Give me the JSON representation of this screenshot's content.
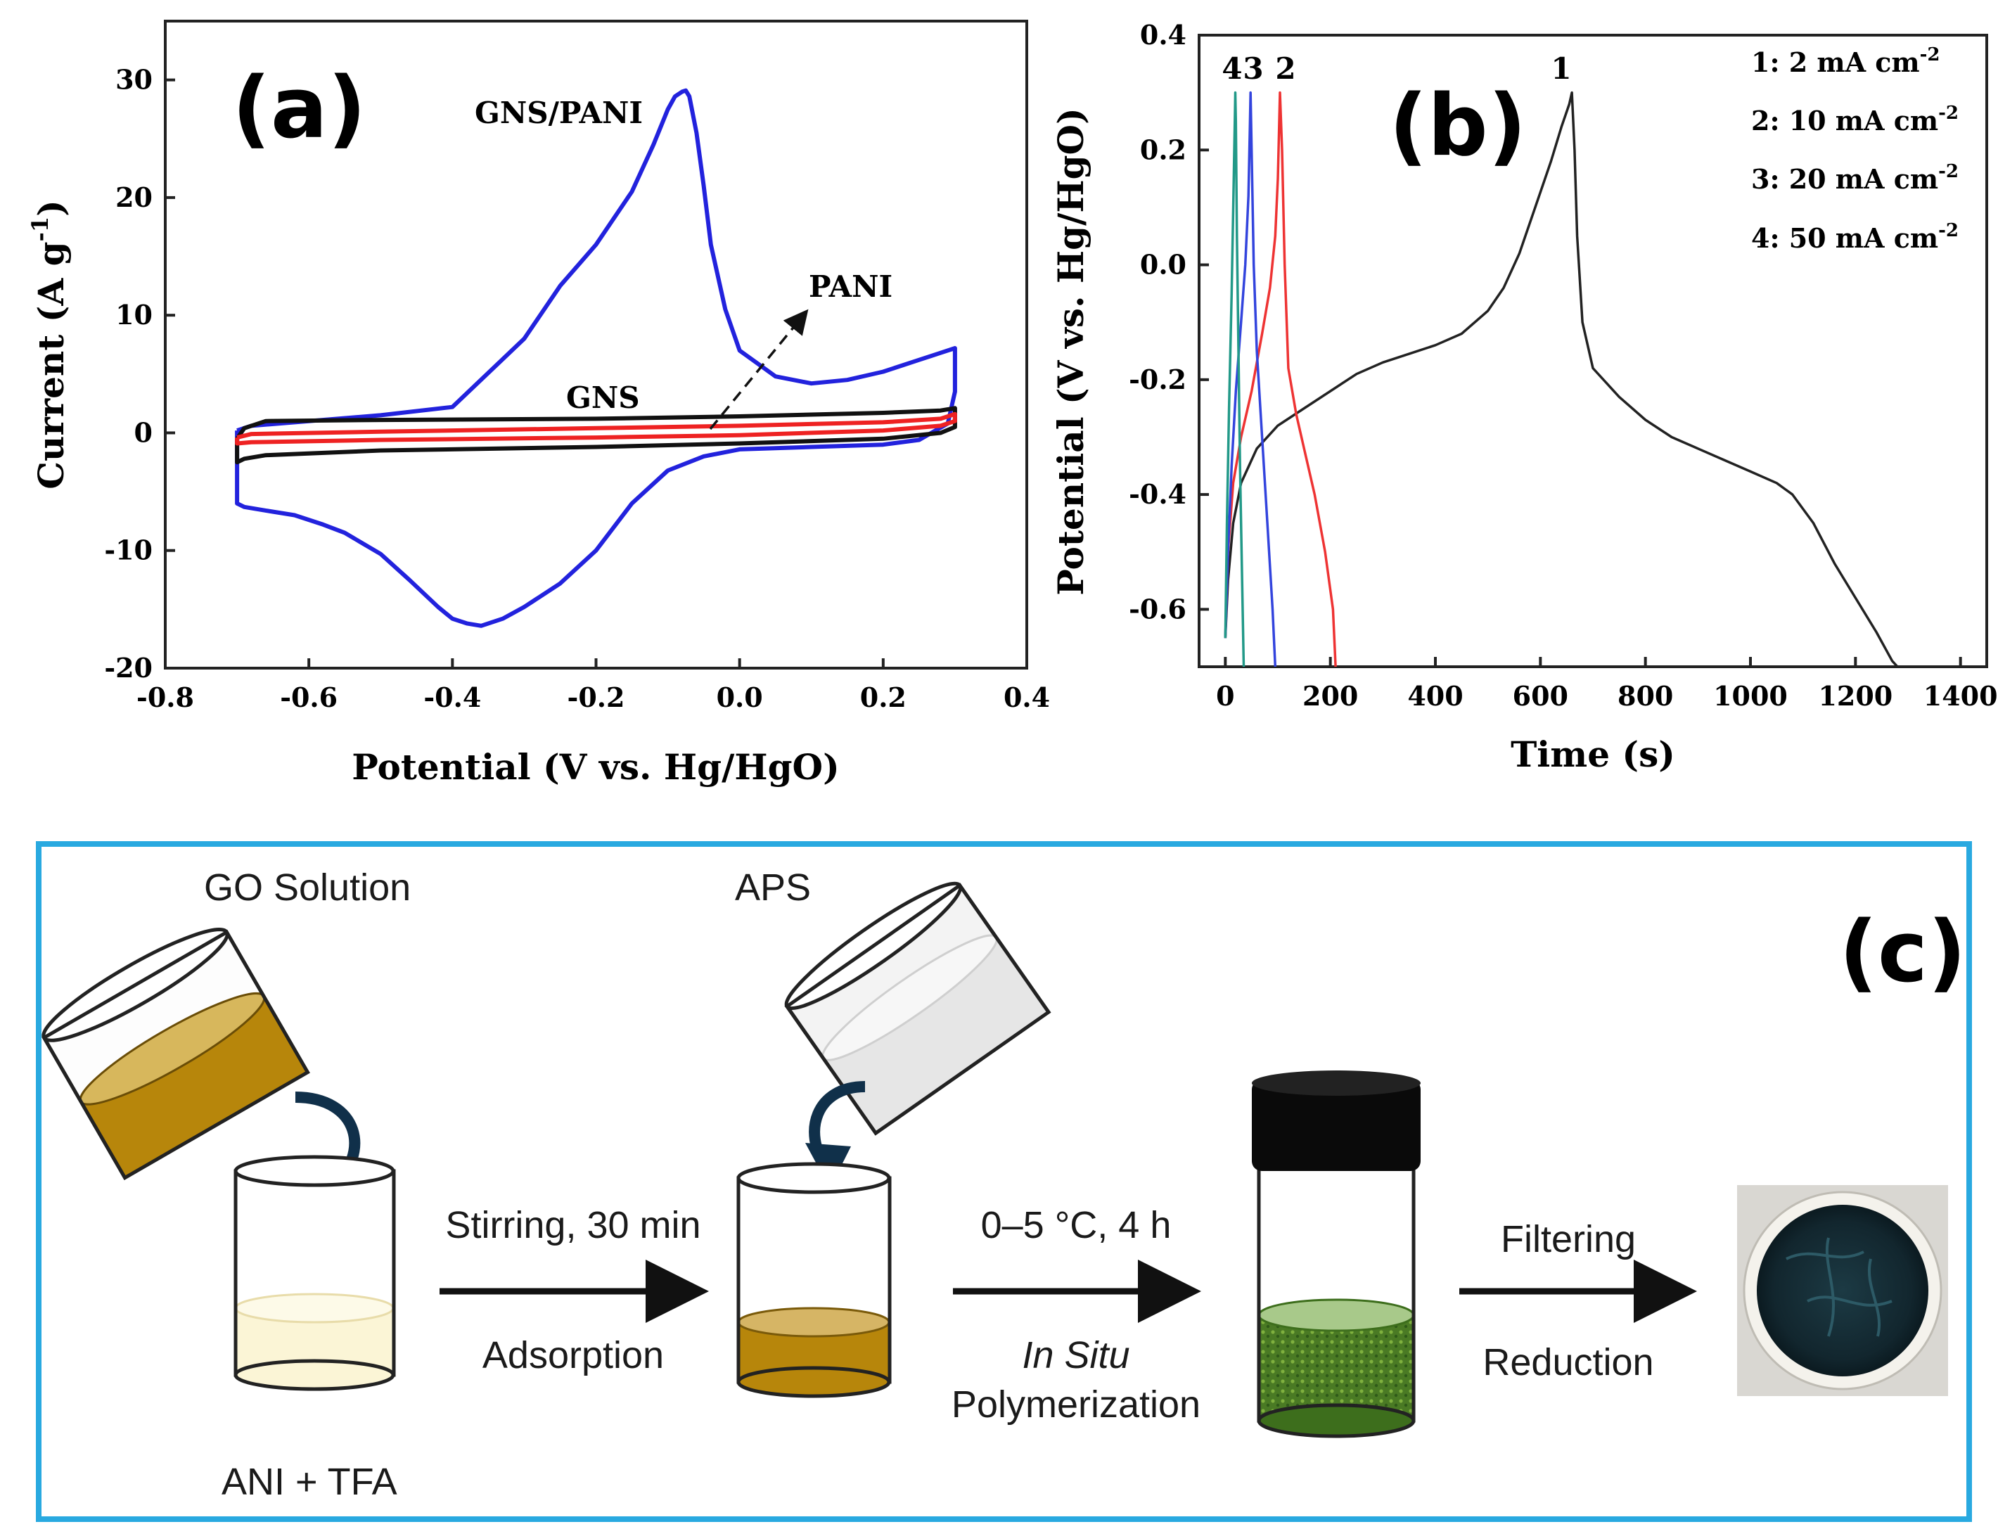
{
  "panel_a": {
    "letter": "(a)",
    "curve_labels": {
      "gns_pani": "GNS/PANI",
      "pani": "PANI",
      "gns": "GNS"
    }
  },
  "panel_b": {
    "letter": "(b)",
    "curve_numbers": [
      "1",
      "2",
      "3",
      "4"
    ],
    "legend": [
      "1: 2 mA cm",
      "2: 10 mA cm",
      "3: 20 mA cm",
      "4: 50 mA cm"
    ],
    "legend_exp": "-2"
  },
  "panel_c": {
    "letter": "(c)",
    "border_color": "#29a9e0",
    "labels": {
      "go_solution": "GO Solution",
      "aps": "APS",
      "ani_tfa": "ANI + TFA",
      "step1_top": "Stirring, 30 min",
      "step1_bottom": "Adsorption",
      "step2_top": "0–5 °C, 4 h",
      "step2_mid": "In Situ",
      "step2_bottom": "Polymerization",
      "step3_top": "Filtering",
      "step3_bottom": "Reduction"
    }
  },
  "chart_data": [
    {
      "type": "line",
      "panel": "a",
      "xlabel": "Potential (V vs. Hg/HgO)",
      "ylabel": "Current (A g",
      "ylabel_exp": "-1",
      "ylabel_end": ")",
      "xlim": [
        -0.8,
        0.4
      ],
      "ylim": [
        -20,
        35
      ],
      "xticks": [
        -0.8,
        -0.6,
        -0.4,
        -0.2,
        0.0,
        0.2,
        0.4
      ],
      "xtick_labels": [
        "-0.8",
        "-0.6",
        "-0.4",
        "-0.2",
        "0.0",
        "0.2",
        "0.4"
      ],
      "yticks": [
        -20,
        -10,
        0,
        10,
        20,
        30
      ],
      "ytick_labels": [
        "-20",
        "-10",
        "0",
        "10",
        "20",
        "30"
      ],
      "series": [
        {
          "name": "GNS/PANI",
          "color": "#2222dd",
          "x": [
            -0.7,
            -0.68,
            -0.6,
            -0.5,
            -0.4,
            -0.3,
            -0.25,
            -0.2,
            -0.15,
            -0.12,
            -0.1,
            -0.09,
            -0.08,
            -0.075,
            -0.07,
            -0.06,
            -0.05,
            -0.04,
            -0.02,
            0.0,
            0.05,
            0.1,
            0.15,
            0.2,
            0.25,
            0.28,
            0.3,
            0.3,
            0.29,
            0.25,
            0.2,
            0.1,
            0.0,
            -0.05,
            -0.1,
            -0.15,
            -0.2,
            -0.25,
            -0.3,
            -0.33,
            -0.36,
            -0.38,
            -0.4,
            -0.42,
            -0.46,
            -0.5,
            -0.55,
            -0.58,
            -0.62,
            -0.66,
            -0.69,
            -0.7,
            -0.7
          ],
          "y": [
            0.2,
            0.6,
            1.0,
            1.5,
            2.2,
            8.0,
            12.5,
            16.0,
            20.5,
            24.5,
            27.5,
            28.6,
            29.0,
            29.1,
            28.6,
            25.5,
            21.0,
            16.0,
            10.5,
            7.0,
            4.8,
            4.2,
            4.5,
            5.2,
            6.2,
            6.8,
            7.2,
            3.5,
            0.8,
            -0.6,
            -1.0,
            -1.2,
            -1.4,
            -2.0,
            -3.2,
            -6.0,
            -10.0,
            -12.8,
            -14.8,
            -15.8,
            -16.4,
            -16.2,
            -15.8,
            -14.8,
            -12.5,
            -10.3,
            -8.5,
            -7.8,
            -7.0,
            -6.6,
            -6.3,
            -6.0,
            0.2
          ]
        },
        {
          "name": "GNS",
          "color": "#111111",
          "x": [
            -0.7,
            -0.69,
            -0.66,
            -0.5,
            -0.2,
            0.0,
            0.2,
            0.28,
            0.3,
            0.3,
            0.28,
            0.2,
            0.0,
            -0.2,
            -0.5,
            -0.66,
            -0.69,
            -0.7,
            -0.7
          ],
          "y": [
            -0.5,
            0.4,
            1.0,
            1.1,
            1.2,
            1.4,
            1.7,
            1.9,
            2.1,
            0.5,
            0.0,
            -0.5,
            -0.9,
            -1.2,
            -1.5,
            -1.9,
            -2.2,
            -2.5,
            -0.5
          ]
        },
        {
          "name": "PANI",
          "color": "#ee2222",
          "x": [
            -0.7,
            -0.68,
            -0.5,
            -0.2,
            0.0,
            0.2,
            0.28,
            0.3,
            0.3,
            0.28,
            0.2,
            0.0,
            -0.2,
            -0.5,
            -0.68,
            -0.7,
            -0.7
          ],
          "y": [
            -0.4,
            -0.1,
            0.1,
            0.4,
            0.6,
            0.9,
            1.2,
            1.6,
            1.0,
            0.6,
            0.2,
            -0.2,
            -0.4,
            -0.6,
            -0.8,
            -0.9,
            -0.4
          ]
        }
      ]
    },
    {
      "type": "line",
      "panel": "b",
      "xlabel": "Time (s)",
      "ylabel": "Potential (V vs. Hg/HgO)",
      "xlim": [
        -50,
        1450
      ],
      "ylim": [
        -0.7,
        0.4
      ],
      "xticks": [
        0,
        200,
        400,
        600,
        800,
        1000,
        1200,
        1400
      ],
      "xtick_labels": [
        "0",
        "200",
        "400",
        "600",
        "800",
        "1000",
        "1200",
        "1400"
      ],
      "yticks": [
        -0.6,
        -0.4,
        -0.2,
        0.0,
        0.2,
        0.4
      ],
      "ytick_labels": [
        "-0.6",
        "-0.4",
        "-0.2",
        "0.0",
        "0.2",
        "0.4"
      ],
      "series": [
        {
          "name": "1: 2 mA cm-2",
          "color": "#222222",
          "x": [
            0,
            5,
            15,
            30,
            60,
            100,
            150,
            200,
            250,
            300,
            350,
            400,
            450,
            500,
            530,
            560,
            590,
            620,
            640,
            655,
            660,
            665,
            670,
            680,
            700,
            750,
            800,
            850,
            900,
            950,
            1000,
            1050,
            1080,
            1120,
            1160,
            1200,
            1240,
            1270,
            1280
          ],
          "y": [
            -0.65,
            -0.55,
            -0.45,
            -0.38,
            -0.32,
            -0.28,
            -0.25,
            -0.22,
            -0.19,
            -0.17,
            -0.155,
            -0.14,
            -0.12,
            -0.08,
            -0.04,
            0.02,
            0.1,
            0.18,
            0.24,
            0.28,
            0.3,
            0.2,
            0.05,
            -0.1,
            -0.18,
            -0.23,
            -0.27,
            -0.3,
            -0.32,
            -0.34,
            -0.36,
            -0.38,
            -0.4,
            -0.45,
            -0.52,
            -0.58,
            -0.64,
            -0.69,
            -0.7
          ]
        },
        {
          "name": "2: 10 mA cm-2",
          "color": "#ee3333",
          "x": [
            0,
            5,
            15,
            30,
            50,
            70,
            85,
            95,
            100,
            104,
            108,
            113,
            120,
            135,
            150,
            170,
            190,
            205,
            210
          ],
          "y": [
            -0.65,
            -0.5,
            -0.38,
            -0.3,
            -0.22,
            -0.12,
            -0.04,
            0.05,
            0.15,
            0.3,
            0.2,
            0.0,
            -0.18,
            -0.26,
            -0.32,
            -0.4,
            -0.5,
            -0.6,
            -0.7
          ]
        },
        {
          "name": "3: 20 mA cm-2",
          "color": "#3344dd",
          "x": [
            0,
            5,
            12,
            20,
            30,
            38,
            44,
            47,
            48,
            50,
            54,
            60,
            70,
            80,
            90,
            95
          ],
          "y": [
            -0.65,
            -0.5,
            -0.35,
            -0.22,
            -0.1,
            0.0,
            0.12,
            0.25,
            0.3,
            0.2,
            0.0,
            -0.15,
            -0.3,
            -0.45,
            -0.6,
            -0.7
          ]
        },
        {
          "name": "4: 50 mA cm-2",
          "color": "#229988",
          "x": [
            0,
            3,
            7,
            12,
            16,
            18,
            19,
            20,
            22,
            25,
            28,
            32,
            35
          ],
          "y": [
            -0.65,
            -0.45,
            -0.25,
            -0.05,
            0.15,
            0.25,
            0.3,
            0.25,
            0.05,
            -0.15,
            -0.35,
            -0.55,
            -0.7
          ]
        }
      ]
    }
  ]
}
